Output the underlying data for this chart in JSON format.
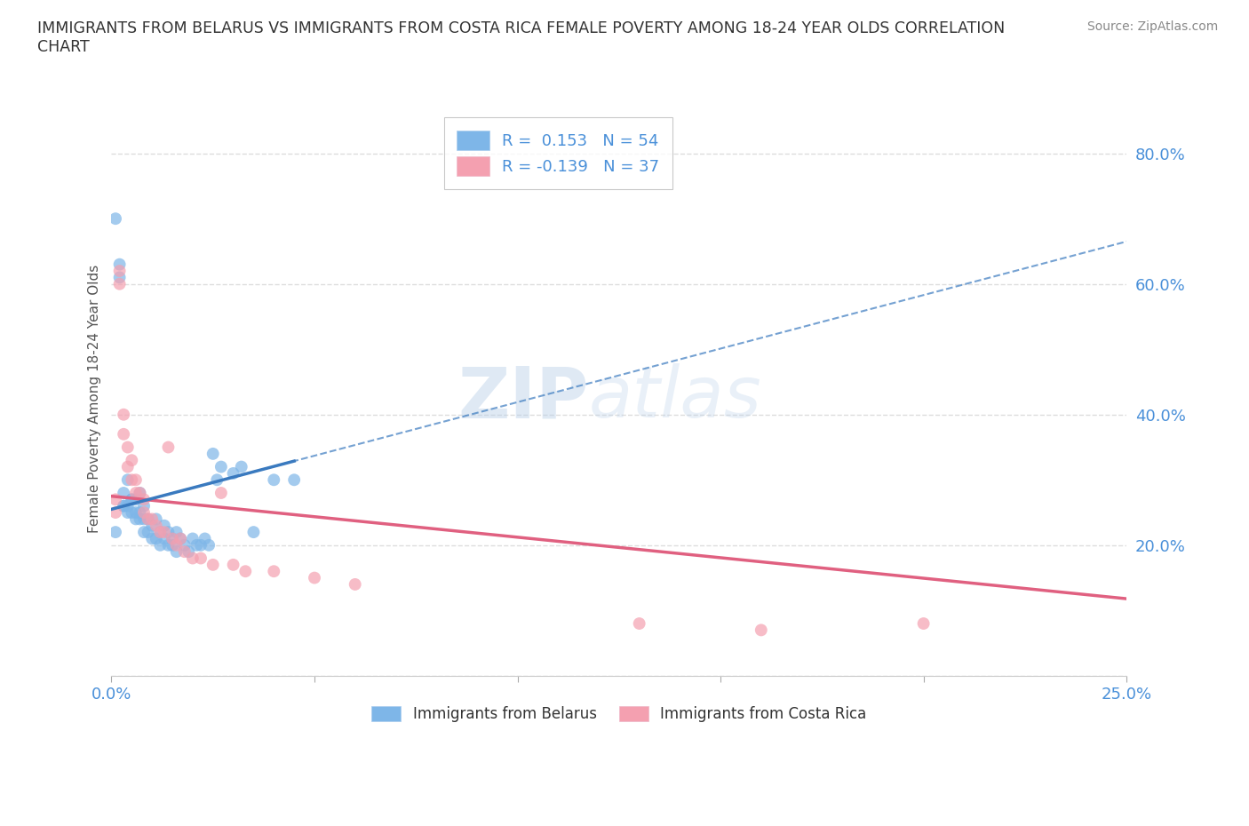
{
  "title": "IMMIGRANTS FROM BELARUS VS IMMIGRANTS FROM COSTA RICA FEMALE POVERTY AMONG 18-24 YEAR OLDS CORRELATION\nCHART",
  "source_text": "Source: ZipAtlas.com",
  "ylabel": "Female Poverty Among 18-24 Year Olds",
  "xlim": [
    0.0,
    0.25
  ],
  "ylim": [
    0.0,
    0.85
  ],
  "xticks": [
    0.0,
    0.05,
    0.1,
    0.15,
    0.2,
    0.25
  ],
  "xticklabels": [
    "0.0%",
    "",
    "",
    "",
    "",
    "25.0%"
  ],
  "ytick_positions": [
    0.0,
    0.2,
    0.4,
    0.6,
    0.8
  ],
  "yticklabels": [
    "",
    "20.0%",
    "40.0%",
    "60.0%",
    "80.0%"
  ],
  "watermark": "ZIPatlas",
  "belarus_color": "#7eb6e8",
  "costarica_color": "#f4a0b0",
  "belarus_trendline_color": "#3a7abf",
  "costarica_trendline_color": "#e06080",
  "belarus_r": 0.153,
  "belarus_n": 54,
  "costarica_r": -0.139,
  "costarica_n": 37,
  "belarus_scatter_x": [
    0.001,
    0.001,
    0.002,
    0.002,
    0.003,
    0.003,
    0.003,
    0.004,
    0.004,
    0.004,
    0.005,
    0.005,
    0.005,
    0.006,
    0.006,
    0.006,
    0.007,
    0.007,
    0.007,
    0.008,
    0.008,
    0.008,
    0.009,
    0.009,
    0.01,
    0.01,
    0.011,
    0.011,
    0.012,
    0.012,
    0.013,
    0.013,
    0.014,
    0.014,
    0.015,
    0.015,
    0.016,
    0.016,
    0.017,
    0.018,
    0.019,
    0.02,
    0.021,
    0.022,
    0.023,
    0.024,
    0.025,
    0.026,
    0.027,
    0.03,
    0.032,
    0.035,
    0.04,
    0.045
  ],
  "belarus_scatter_y": [
    0.7,
    0.22,
    0.61,
    0.63,
    0.26,
    0.26,
    0.28,
    0.25,
    0.26,
    0.3,
    0.25,
    0.27,
    0.27,
    0.24,
    0.25,
    0.27,
    0.24,
    0.25,
    0.28,
    0.22,
    0.24,
    0.26,
    0.22,
    0.24,
    0.21,
    0.23,
    0.21,
    0.24,
    0.2,
    0.22,
    0.21,
    0.23,
    0.2,
    0.22,
    0.2,
    0.21,
    0.19,
    0.22,
    0.21,
    0.2,
    0.19,
    0.21,
    0.2,
    0.2,
    0.21,
    0.2,
    0.34,
    0.3,
    0.32,
    0.31,
    0.32,
    0.22,
    0.3,
    0.3
  ],
  "costarica_scatter_x": [
    0.001,
    0.001,
    0.002,
    0.002,
    0.003,
    0.003,
    0.004,
    0.004,
    0.005,
    0.005,
    0.006,
    0.006,
    0.007,
    0.008,
    0.008,
    0.009,
    0.01,
    0.011,
    0.012,
    0.013,
    0.014,
    0.015,
    0.016,
    0.017,
    0.018,
    0.02,
    0.022,
    0.025,
    0.027,
    0.03,
    0.033,
    0.04,
    0.05,
    0.06,
    0.13,
    0.16,
    0.2
  ],
  "costarica_scatter_y": [
    0.27,
    0.25,
    0.62,
    0.6,
    0.4,
    0.37,
    0.35,
    0.32,
    0.3,
    0.33,
    0.3,
    0.28,
    0.28,
    0.25,
    0.27,
    0.24,
    0.24,
    0.23,
    0.22,
    0.22,
    0.35,
    0.21,
    0.2,
    0.21,
    0.19,
    0.18,
    0.18,
    0.17,
    0.28,
    0.17,
    0.16,
    0.16,
    0.15,
    0.14,
    0.08,
    0.07,
    0.08
  ],
  "background_color": "#ffffff",
  "grid_color": "#dddddd",
  "grid_linestyle": "--",
  "title_color": "#333333",
  "axis_label_color": "#555555",
  "tick_color": "#4a90d9",
  "source_color": "#888888",
  "legend_text_color": "#4a90d9",
  "belarus_trendline_y0": 0.255,
  "belarus_trendline_y1": 0.665,
  "costarica_trendline_y0": 0.275,
  "costarica_trendline_y1": 0.118
}
